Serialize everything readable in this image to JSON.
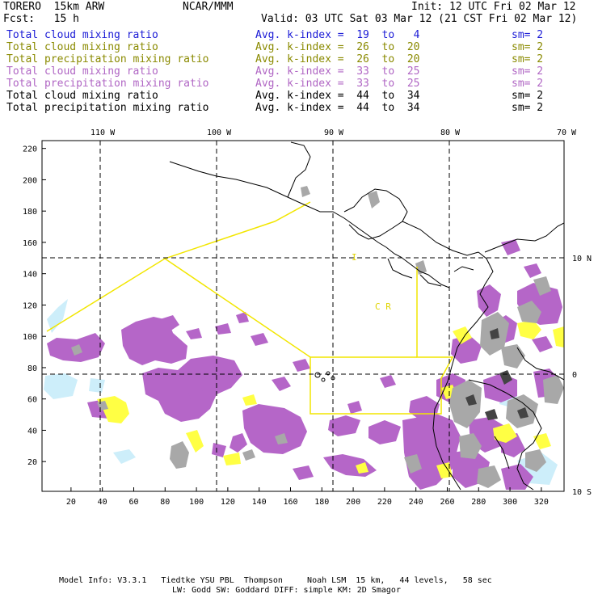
{
  "header": {
    "model": "TORERO  15km ARW",
    "org": "NCAR/MMM",
    "init": "Init: 12 UTC Fri 02 Mar 12",
    "fcst": "Fcst:   15 h",
    "valid": "Valid: 03 UTC Sat 03 Mar 12 (21 CST Fri 02 Mar 12)"
  },
  "legend": [
    {
      "field": "Total cloud mixing ratio",
      "kindex": "Avg. k-index =  19  to   4",
      "sm": "sm= 2",
      "color": "#1b1bd6"
    },
    {
      "field": "Total cloud mixing ratio",
      "kindex": "Avg. k-index =  26  to  20",
      "sm": "sm= 2",
      "color": "#8a8a00"
    },
    {
      "field": "Total precipitation mixing ratio",
      "kindex": "Avg. k-index =  26  to  20",
      "sm": "sm= 2",
      "color": "#8a8a00"
    },
    {
      "field": "Total cloud mixing ratio",
      "kindex": "Avg. k-index =  33  to  25",
      "sm": "sm= 2",
      "color": "#b066c4"
    },
    {
      "field": "Total precipitation mixing ratio",
      "kindex": "Avg. k-index =  33  to  25",
      "sm": "sm= 2",
      "color": "#b066c4"
    },
    {
      "field": "Total cloud mixing ratio",
      "kindex": "Avg. k-index =  44  to  34",
      "sm": "sm= 2",
      "color": "#000000"
    },
    {
      "field": "Total precipitation mixing ratio",
      "kindex": "Avg. k-index =  44  to  34",
      "sm": "sm= 2",
      "color": "#000000"
    }
  ],
  "axes": {
    "longitude_labels": [
      "110 W",
      "100 W",
      "90 W",
      "80 W",
      "70 W"
    ],
    "latitude_labels": [
      "10 N",
      "0",
      "10 S"
    ],
    "x_ticks": [
      "20",
      "40",
      "60",
      "80",
      "100",
      "120",
      "140",
      "160",
      "180",
      "200",
      "220",
      "240",
      "260",
      "280",
      "300",
      "320"
    ],
    "y_ticks": [
      "220",
      "200",
      "180",
      "160",
      "140",
      "120",
      "100",
      "80",
      "60",
      "40",
      "20"
    ]
  },
  "map_labels": {
    "box_letter": "I",
    "region_label": "C  R"
  },
  "footer": {
    "line1": "Model Info: V3.3.1   Tiedtke YSU PBL  Thompson     Noah LSM  15 km,   44 levels,   58 sec",
    "line2": "LW: Godd SW: Goddard DIFF: simple KM: 2D Smagor"
  },
  "colors": {
    "purple": "#b566c8",
    "gray": "#a8a8a8",
    "darkgray": "#444444",
    "yellow": "#ffff44",
    "lightblue": "#cdeefa",
    "boundary": "#f2e600"
  }
}
